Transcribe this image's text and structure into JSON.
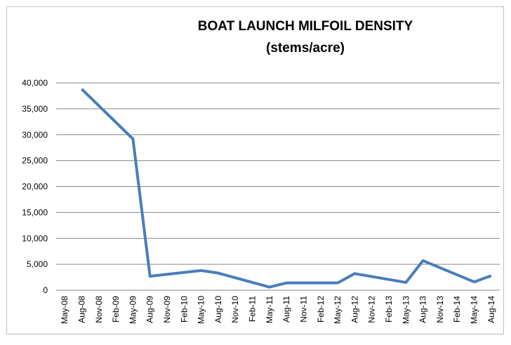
{
  "chart_data": {
    "type": "line",
    "title": "BOAT LAUNCH MILFOIL DENSITY",
    "subtitle": "(stems/acre)",
    "categories": [
      "May-08",
      "Aug-08",
      "Nov-08",
      "Feb-09",
      "May-09",
      "Aug-09",
      "Nov-09",
      "Feb-10",
      "May-10",
      "Aug-10",
      "Nov-10",
      "Feb-11",
      "May-11",
      "Aug-11",
      "Nov-11",
      "Feb-12",
      "May-12",
      "Aug-12",
      "Nov-12",
      "Feb-13",
      "May-13",
      "Aug-13",
      "Nov-13",
      "Feb-14",
      "May-14",
      "Aug-14"
    ],
    "x": [
      "Aug-08",
      "May-09",
      "Aug-09",
      "May-10",
      "Aug-10",
      "May-11",
      "Aug-11",
      "May-12",
      "Aug-12",
      "May-13",
      "Aug-13",
      "May-14",
      "Aug-14"
    ],
    "series": [
      {
        "color": "#4a7ebb",
        "values": [
          38800,
          29200,
          2700,
          3800,
          3300,
          600,
          1400,
          1400,
          3200,
          1500,
          5700,
          1600,
          2800
        ]
      }
    ],
    "ylim": [
      0,
      40000
    ],
    "yticks": [
      0,
      {
        "value": 5000,
        "label": "5,000"
      },
      {
        "value": 10000,
        "label": "10,000"
      },
      {
        "value": 15000,
        "label": "15,000"
      },
      {
        "value": 20000,
        "label": "20,000"
      },
      {
        "value": 25000,
        "label": "25,000"
      },
      {
        "value": 30000,
        "label": "30,000"
      },
      {
        "value": 35000,
        "label": "35,000"
      },
      {
        "value": 40000,
        "label": "40,000"
      }
    ],
    "grid": true
  }
}
